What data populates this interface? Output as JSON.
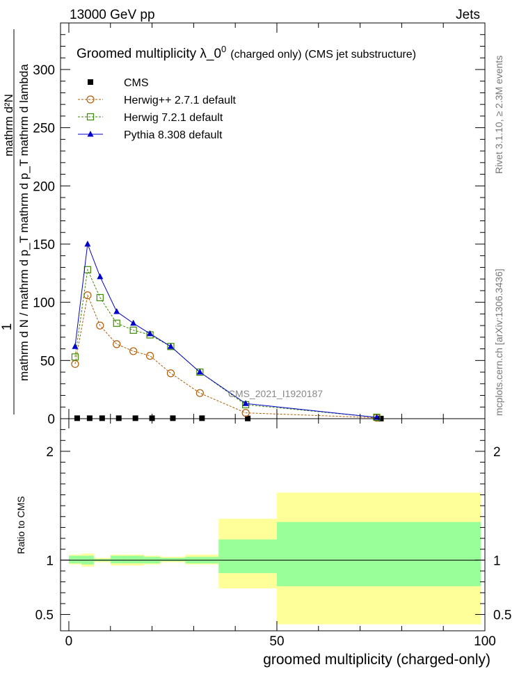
{
  "header": {
    "left": "13000 GeV pp",
    "right": "Jets"
  },
  "side_labels": {
    "rivet": "Rivet 3.1.10, ≥ 2.3M events",
    "mcplots": "mcplots.cern.ch [arXiv:1306.3436]"
  },
  "chart_data": [
    {
      "type": "line",
      "title_main": "Groomed multiplicity  λ_0",
      "title_sup": "0",
      "title_suffix": "(charged only) (CMS jet substructure)",
      "analysis_tag": "CMS_2021_I1920187",
      "ylabel_numerator": "mathrm d²N",
      "ylabel_denominator": "mathrm d N / mathrm d p_T mathrm d p_T mathrm d lambda",
      "ylabel_prefix": "1",
      "xlim": [
        -2,
        100
      ],
      "ylim": [
        0,
        340
      ],
      "yticks": [
        0,
        50,
        100,
        150,
        200,
        250,
        300
      ],
      "legend_position": "top-left",
      "series": [
        {
          "name": "CMS",
          "color": "#000000",
          "marker": "square-filled",
          "x": [
            2,
            5,
            8,
            12,
            16,
            20,
            25,
            32,
            43,
            75
          ],
          "y": [
            0.4,
            0.4,
            0.4,
            0.4,
            0.4,
            0.4,
            0.4,
            0.4,
            0.2,
            0.1
          ]
        },
        {
          "name": "Herwig++ 2.7.1 default",
          "color": "#b35900",
          "marker": "circle-open",
          "line": "dotted",
          "x": [
            1.5,
            4.5,
            7.5,
            11.5,
            15.5,
            19.5,
            24.5,
            31.5,
            42.5,
            74
          ],
          "y": [
            47,
            106,
            80,
            64,
            58,
            54,
            39,
            22,
            5,
            0.8
          ]
        },
        {
          "name": "Herwig 7.2.1 default",
          "color": "#3a8a00",
          "marker": "square-open",
          "line": "dotted",
          "x": [
            1.5,
            4.5,
            7.5,
            11.5,
            15.5,
            19.5,
            24.5,
            31.5,
            42.5,
            74
          ],
          "y": [
            53,
            128,
            104,
            82,
            76,
            72,
            62,
            40,
            12,
            1.2
          ]
        },
        {
          "name": "Pythia 8.308 default",
          "color": "#0000cc",
          "marker": "triangle-filled",
          "line": "solid",
          "x": [
            1.5,
            4.5,
            7.5,
            11.5,
            15.5,
            19.5,
            24.5,
            31.5,
            42.5,
            74
          ],
          "y": [
            62,
            150,
            122,
            92,
            82,
            73,
            62,
            40,
            13,
            1.1
          ]
        }
      ]
    },
    {
      "type": "area",
      "xlabel": "groomed multiplicity (charged-only)",
      "ylabel": "Ratio to CMS",
      "xlim": [
        -2,
        100
      ],
      "ylim": [
        0.35,
        2.3
      ],
      "xticks": [
        0,
        50,
        100
      ],
      "yticks": [
        0.5,
        1,
        2
      ],
      "reference_line": 1,
      "bins": [
        {
          "x0": 0,
          "x1": 3,
          "yellow": [
            0.96,
            1.05
          ],
          "green": [
            0.97,
            1.04
          ]
        },
        {
          "x0": 3,
          "x1": 6,
          "yellow": [
            0.94,
            1.06
          ],
          "green": [
            0.96,
            1.04
          ]
        },
        {
          "x0": 6,
          "x1": 10,
          "yellow": [
            0.98,
            1.02
          ],
          "green": [
            0.99,
            1.01
          ]
        },
        {
          "x0": 10,
          "x1": 14,
          "yellow": [
            0.95,
            1.05
          ],
          "green": [
            0.97,
            1.04
          ]
        },
        {
          "x0": 14,
          "x1": 18,
          "yellow": [
            0.95,
            1.05
          ],
          "green": [
            0.97,
            1.04
          ]
        },
        {
          "x0": 18,
          "x1": 22,
          "yellow": [
            0.96,
            1.04
          ],
          "green": [
            0.97,
            1.03
          ]
        },
        {
          "x0": 22,
          "x1": 28,
          "yellow": [
            0.98,
            1.03
          ],
          "green": [
            0.99,
            1.02
          ]
        },
        {
          "x0": 28,
          "x1": 36,
          "yellow": [
            0.96,
            1.05
          ],
          "green": [
            0.97,
            1.03
          ]
        },
        {
          "x0": 36,
          "x1": 50,
          "yellow": [
            0.74,
            1.38
          ],
          "green": [
            0.88,
            1.19
          ]
        },
        {
          "x0": 50,
          "x1": 99,
          "yellow": [
            0.41,
            1.62
          ],
          "green": [
            0.76,
            1.35
          ]
        }
      ]
    }
  ]
}
